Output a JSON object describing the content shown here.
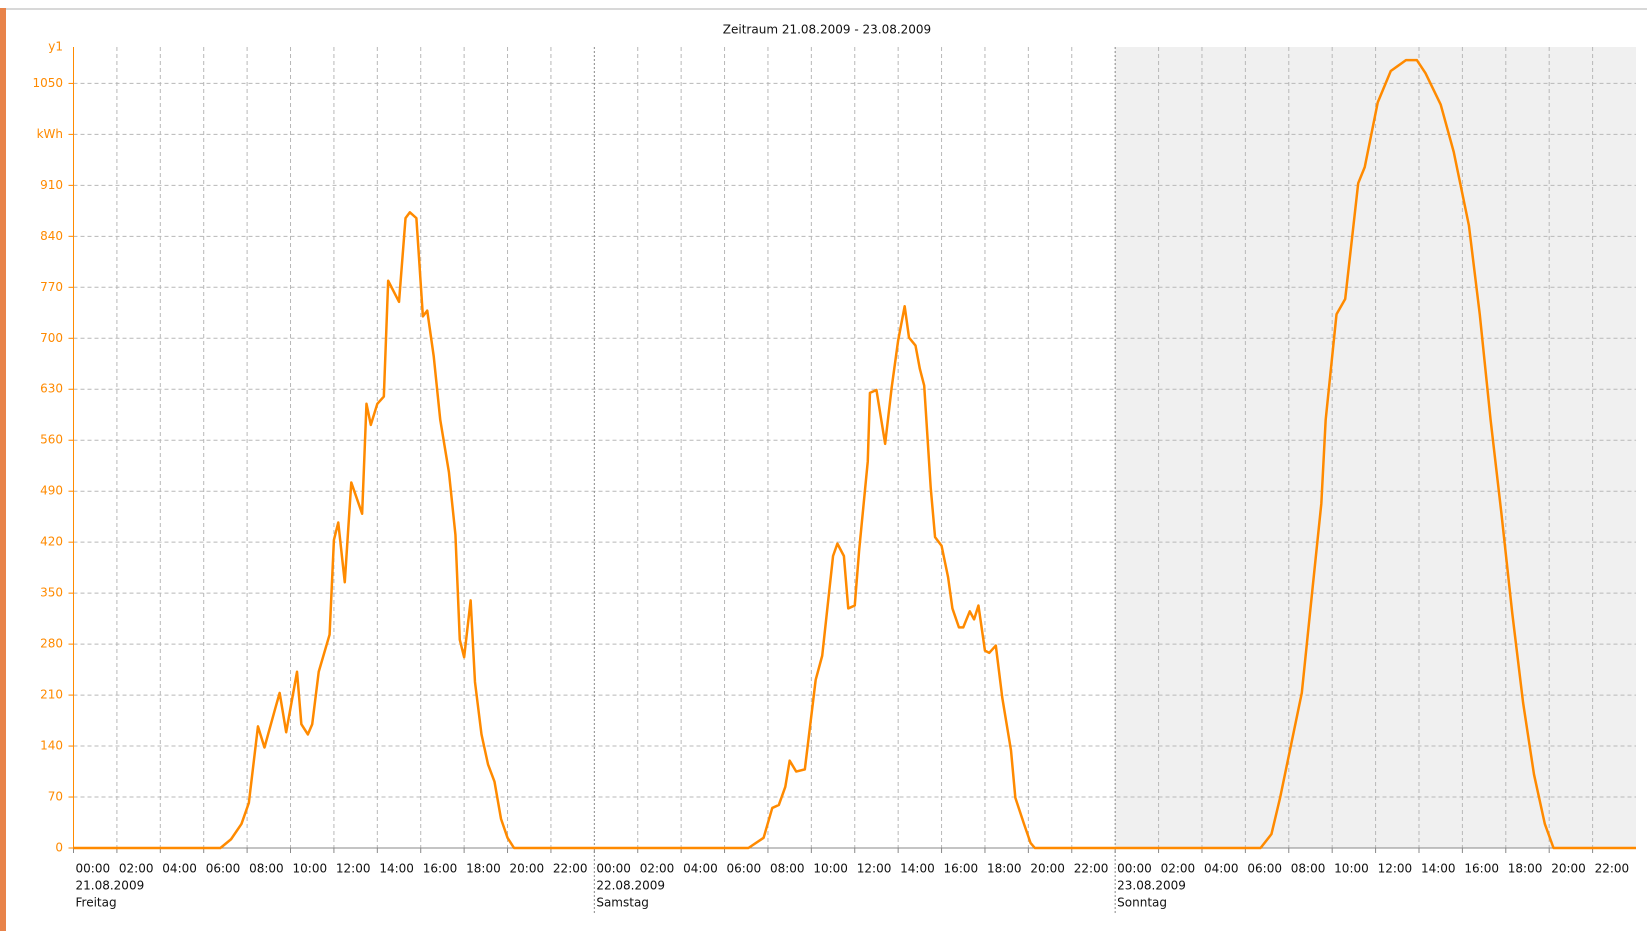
{
  "chart_data": {
    "type": "line",
    "title": "Zeitraum 21.08.2009 - 23.08.2009",
    "y_label": "y1",
    "color": "#ff8a00",
    "grid": true,
    "days": [
      {
        "date": "21.08.2009",
        "weekday": "Freitag"
      },
      {
        "date": "22.08.2009",
        "weekday": "Samstag"
      },
      {
        "date": "23.08.2009",
        "weekday": "Sonntag"
      }
    ],
    "xlim": [
      0,
      72
    ],
    "xticks": [
      {
        "value": 0,
        "label": "00:00"
      },
      {
        "value": 2,
        "label": "02:00"
      },
      {
        "value": 4,
        "label": "04:00"
      },
      {
        "value": 6,
        "label": "06:00"
      },
      {
        "value": 8,
        "label": "08:00"
      },
      {
        "value": 10,
        "label": "10:00"
      },
      {
        "value": 12,
        "label": "12:00"
      },
      {
        "value": 14,
        "label": "14:00"
      },
      {
        "value": 16,
        "label": "16:00"
      },
      {
        "value": 18,
        "label": "18:00"
      },
      {
        "value": 20,
        "label": "20:00"
      },
      {
        "value": 22,
        "label": "22:00"
      },
      {
        "value": 24,
        "label": "00:00"
      },
      {
        "value": 26,
        "label": "02:00"
      },
      {
        "value": 28,
        "label": "04:00"
      },
      {
        "value": 30,
        "label": "06:00"
      },
      {
        "value": 32,
        "label": "08:00"
      },
      {
        "value": 34,
        "label": "10:00"
      },
      {
        "value": 36,
        "label": "12:00"
      },
      {
        "value": 38,
        "label": "14:00"
      },
      {
        "value": 40,
        "label": "16:00"
      },
      {
        "value": 42,
        "label": "18:00"
      },
      {
        "value": 44,
        "label": "20:00"
      },
      {
        "value": 46,
        "label": "22:00"
      },
      {
        "value": 48,
        "label": "00:00"
      },
      {
        "value": 50,
        "label": "02:00"
      },
      {
        "value": 52,
        "label": "04:00"
      },
      {
        "value": 54,
        "label": "06:00"
      },
      {
        "value": 56,
        "label": "08:00"
      },
      {
        "value": 58,
        "label": "10:00"
      },
      {
        "value": 60,
        "label": "12:00"
      },
      {
        "value": 62,
        "label": "14:00"
      },
      {
        "value": 64,
        "label": "16:00"
      },
      {
        "value": 66,
        "label": "18:00"
      },
      {
        "value": 68,
        "label": "20:00"
      },
      {
        "value": 70,
        "label": "22:00"
      }
    ],
    "ylim": [
      0,
      1100
    ],
    "yticks": [
      0,
      70,
      140,
      210,
      280,
      350,
      420,
      490,
      560,
      630,
      700,
      770,
      840,
      910,
      {
        "value": 980,
        "label": "kWh"
      },
      1050
    ],
    "x": [
      0,
      6.77,
      7.26,
      7.74,
      8.08,
      8.5,
      8.8,
      9.3,
      9.5,
      9.8,
      10.3,
      10.5,
      10.8,
      11.0,
      11.3,
      11.8,
      12.0,
      12.2,
      12.5,
      12.8,
      13.3,
      13.5,
      13.7,
      14.0,
      14.3,
      14.5,
      15.0,
      15.3,
      15.5,
      15.8,
      16.1,
      16.3,
      16.6,
      16.9,
      17.3,
      17.6,
      17.8,
      18.0,
      18.3,
      18.5,
      18.8,
      19.1,
      19.4,
      19.7,
      20.0,
      20.3,
      31.1,
      31.8,
      32.2,
      32.5,
      32.8,
      33.0,
      33.3,
      33.7,
      34.2,
      34.5,
      35.0,
      35.2,
      35.5,
      35.7,
      36.0,
      36.2,
      36.6,
      36.7,
      37.0,
      37.4,
      37.7,
      38.0,
      38.3,
      38.5,
      38.8,
      39.0,
      39.2,
      39.5,
      39.7,
      40.0,
      40.3,
      40.5,
      40.8,
      41.0,
      41.3,
      41.5,
      41.7,
      42.0,
      42.2,
      42.5,
      42.8,
      43.2,
      43.4,
      43.8,
      44.1,
      44.3,
      54.7,
      55.2,
      55.6,
      56.1,
      56.6,
      57.1,
      57.5,
      57.7,
      58.2,
      58.6,
      59.2,
      59.5,
      60.1,
      60.7,
      61.4,
      61.9,
      62.3,
      63.0,
      63.6,
      64.3,
      64.8,
      65.3,
      65.8,
      66.3,
      66.8,
      67.3,
      67.8,
      68.2,
      72
    ],
    "values": [
      0,
      0,
      12,
      33,
      62,
      167,
      138,
      192,
      213,
      159,
      242,
      170,
      156,
      170,
      242,
      293,
      423,
      447,
      365,
      502,
      459,
      610,
      581,
      610,
      620,
      779,
      750,
      865,
      873,
      865,
      730,
      738,
      675,
      588,
      516,
      430,
      286,
      262,
      340,
      228,
      156,
      115,
      91,
      40,
      14,
      0,
      0,
      14,
      55,
      59,
      84,
      120,
      105,
      108,
      231,
      264,
      401,
      418,
      401,
      329,
      333,
      408,
      531,
      625,
      629,
      555,
      632,
      697,
      744,
      701,
      690,
      658,
      635,
      495,
      427,
      415,
      372,
      329,
      303,
      303,
      325,
      314,
      333,
      271,
      268,
      278,
      206,
      134,
      69,
      33,
      7,
      0,
      0,
      19,
      69,
      141,
      213,
      358,
      473,
      588,
      733,
      754,
      913,
      935,
      1024,
      1067,
      1082,
      1082,
      1064,
      1021,
      956,
      855,
      733,
      588,
      459,
      322,
      199,
      101,
      33,
      0,
      0
    ]
  }
}
